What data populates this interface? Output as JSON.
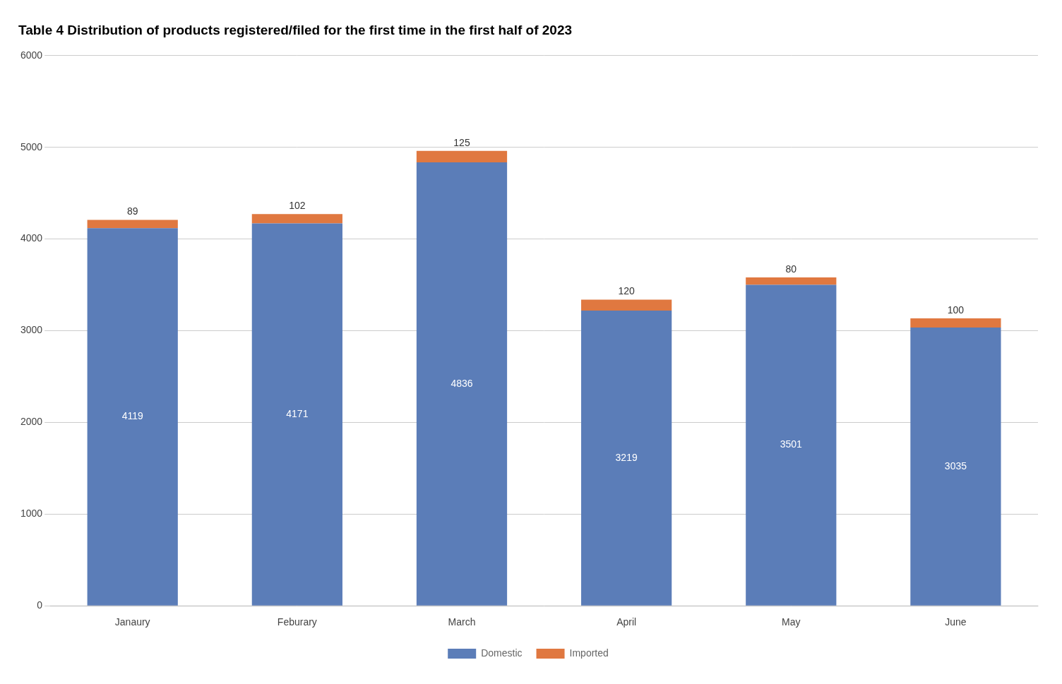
{
  "chart_data": {
    "type": "bar",
    "title": "Table 4 Distribution of products registered/filed for the first time in the first half of 2023",
    "categories": [
      "Janaury",
      "Feburary",
      "March",
      "April",
      "May",
      "June"
    ],
    "series": [
      {
        "name": "Domestic",
        "color": "#5B7DB8",
        "values": [
          4119,
          4171,
          4836,
          3219,
          3501,
          3035
        ]
      },
      {
        "name": "Imported",
        "color": "#E07840",
        "values": [
          89,
          102,
          125,
          120,
          80,
          100
        ]
      }
    ],
    "stacked": true,
    "data_labels": true,
    "ylim": [
      0,
      6000
    ],
    "yticks": [
      0,
      1000,
      2000,
      3000,
      4000,
      5000,
      6000
    ],
    "grid": true,
    "legend": "bottom"
  }
}
